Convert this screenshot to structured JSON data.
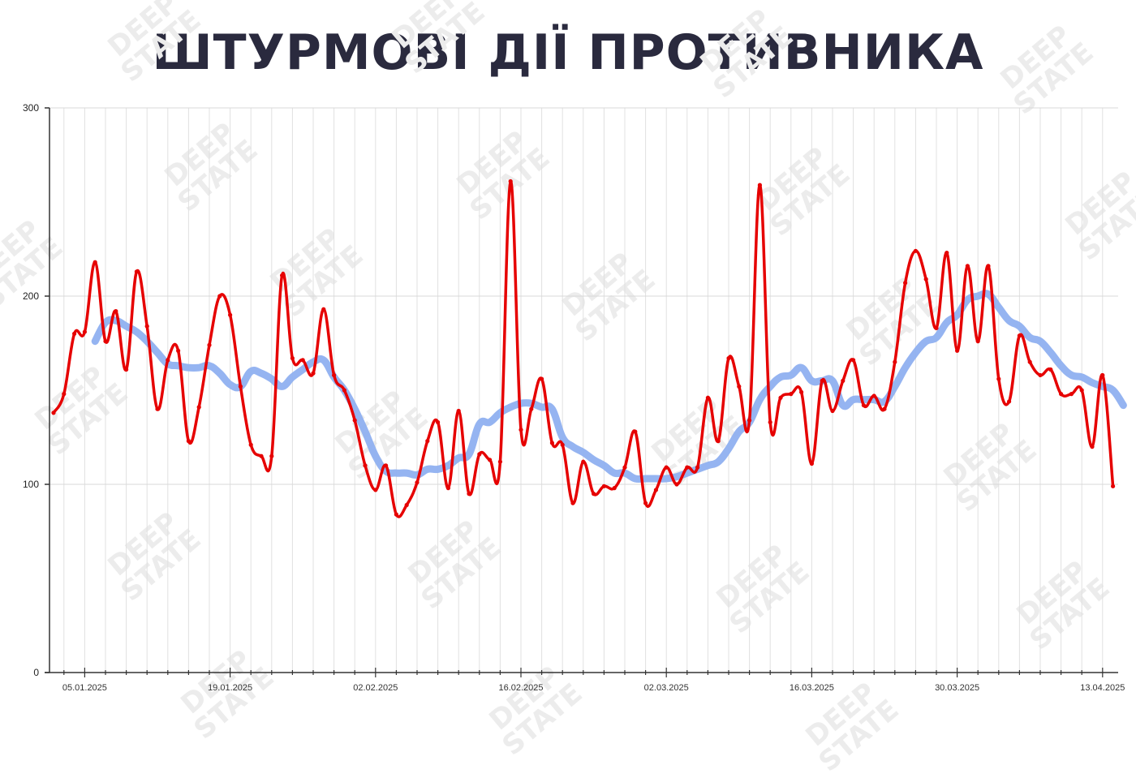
{
  "title": "ШТУРМОВІ ДІЇ ПРОТИВНИКА",
  "watermark": "DEEP STATE",
  "colors": {
    "daily": "#e60000",
    "average": "#8fb0f0",
    "axis": "#333333",
    "grid": "#e0e0e0",
    "title": "#2a2a3e"
  },
  "chart_data": {
    "type": "line",
    "title": "ШТУРМОВІ ДІЇ ПРОТИВНИКА",
    "xlabel": "",
    "ylabel": "",
    "ylim": [
      0,
      300
    ],
    "yticks": [
      0,
      100,
      200,
      300
    ],
    "x_start": "02.01.2025",
    "x_end": "14.04.2025",
    "x_tick_labels": [
      "05.01.2025",
      "19.01.2025",
      "02.02.2025",
      "16.02.2025",
      "02.03.2025",
      "16.03.2025",
      "30.03.2025",
      "13.04.2025"
    ],
    "x_tick_day_index": [
      3,
      17,
      31,
      45,
      59,
      73,
      87,
      101
    ],
    "grid": true,
    "legend": "none",
    "series": [
      {
        "name": "daily",
        "color": "#e60000",
        "start_index": 0,
        "values": [
          138,
          148,
          180,
          181,
          218,
          176,
          192,
          161,
          213,
          184,
          140,
          166,
          171,
          123,
          141,
          174,
          200,
          190,
          152,
          121,
          115,
          115,
          211,
          167,
          166,
          159,
          193,
          158,
          150,
          134,
          110,
          97,
          110,
          84,
          89,
          101,
          123,
          133,
          98,
          139,
          95,
          116,
          113,
          112,
          261,
          129,
          140,
          156,
          122,
          121,
          90,
          112,
          95,
          99,
          98,
          109,
          128,
          90,
          97,
          109,
          100,
          109,
          109,
          146,
          123,
          167,
          152,
          134,
          259,
          133,
          146,
          148,
          149,
          111,
          155,
          139,
          155,
          166,
          142,
          147,
          140,
          165,
          207,
          224,
          209,
          183,
          223,
          171,
          216,
          176,
          216,
          156,
          144,
          179,
          165,
          158,
          161,
          148,
          148,
          150,
          120,
          158,
          99
        ]
      },
      {
        "name": "7-day average",
        "color": "#8fb0f0",
        "start_index": 4,
        "values": [
          176,
          186,
          187,
          184,
          181,
          176,
          170,
          164,
          163,
          162,
          162,
          163,
          159,
          153,
          152,
          160,
          159,
          156,
          152,
          157,
          161,
          165,
          166,
          157,
          150,
          140,
          128,
          115,
          107,
          106,
          106,
          105,
          108,
          108,
          110,
          114,
          116,
          132,
          133,
          138,
          141,
          143,
          143,
          141,
          140,
          125,
          120,
          117,
          113,
          110,
          106,
          106,
          103,
          103,
          103,
          103,
          104,
          106,
          108,
          110,
          112,
          119,
          128,
          133,
          145,
          152,
          157,
          158,
          162,
          155,
          155,
          155,
          142,
          145,
          145,
          145,
          144,
          152,
          162,
          170,
          176,
          178,
          186,
          190,
          198,
          200,
          201,
          194,
          187,
          184,
          178,
          176,
          170,
          163,
          158,
          157,
          154,
          152,
          150,
          142
        ]
      }
    ]
  }
}
